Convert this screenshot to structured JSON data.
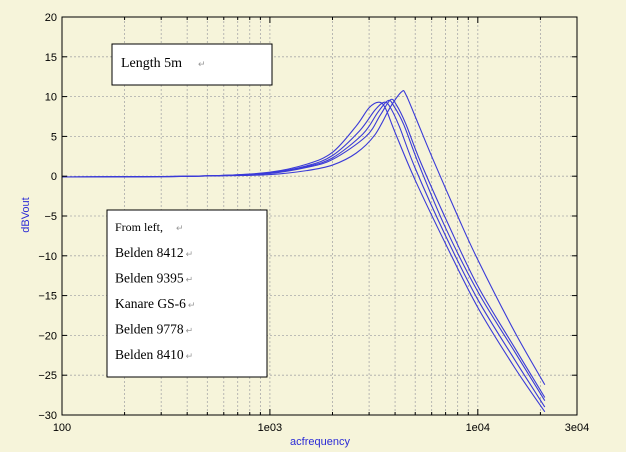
{
  "chart_data": {
    "type": "line",
    "xlabel": "acfrequency",
    "ylabel": "dBVout",
    "xscale": "log",
    "xlim": [
      100,
      30000
    ],
    "ylim": [
      -30,
      20
    ],
    "grid": true,
    "x_ticks": [
      {
        "value": 100,
        "label": "100"
      },
      {
        "value": 1000,
        "label": "1e03"
      },
      {
        "value": 10000,
        "label": "1e04"
      },
      {
        "value": 30000,
        "label": "3e04"
      }
    ],
    "y_ticks": [
      {
        "value": 20,
        "label": "20"
      },
      {
        "value": 15,
        "label": "15"
      },
      {
        "value": 10,
        "label": "10"
      },
      {
        "value": 5,
        "label": "5"
      },
      {
        "value": 0,
        "label": "0"
      },
      {
        "value": -5,
        "label": "−5"
      },
      {
        "value": -10,
        "label": "−10"
      },
      {
        "value": -15,
        "label": "−15"
      },
      {
        "value": -20,
        "label": "−20"
      },
      {
        "value": -25,
        "label": "−25"
      },
      {
        "value": -30,
        "label": "−30"
      }
    ],
    "line_color": "#3a3ad8",
    "series": [
      {
        "x": [
          100,
          300,
          600,
          1000,
          1500,
          2000,
          2600,
          3000,
          3350,
          3600,
          4000,
          5000,
          7000,
          10000,
          15000,
          21000
        ],
        "y": [
          -0.1,
          -0.05,
          0.1,
          0.5,
          1.5,
          3.0,
          6.3,
          8.6,
          9.3,
          8.5,
          5.5,
          -0.5,
          -8.5,
          -16.5,
          -24.0,
          -29.6
        ]
      },
      {
        "x": [
          100,
          300,
          600,
          1000,
          1500,
          2000,
          2700,
          3200,
          3550,
          3800,
          4200,
          5000,
          7000,
          10000,
          15000,
          21000
        ],
        "y": [
          -0.1,
          -0.05,
          0.1,
          0.45,
          1.3,
          2.6,
          5.7,
          8.3,
          9.3,
          8.6,
          6.2,
          1.0,
          -7.5,
          -15.5,
          -23.0,
          -29.0
        ]
      },
      {
        "x": [
          100,
          300,
          600,
          1000,
          1500,
          2000,
          2800,
          3300,
          3700,
          3950,
          4400,
          5200,
          7000,
          10000,
          15000,
          21000
        ],
        "y": [
          -0.1,
          -0.05,
          0.1,
          0.4,
          1.2,
          2.3,
          5.3,
          8.0,
          9.5,
          8.8,
          6.5,
          1.5,
          -6.5,
          -14.5,
          -22.0,
          -28.2
        ]
      },
      {
        "x": [
          100,
          300,
          600,
          1000,
          1500,
          2000,
          2900,
          3400,
          3800,
          4050,
          4500,
          5300,
          7200,
          10000,
          15000,
          21000
        ],
        "y": [
          -0.1,
          -0.05,
          0.1,
          0.35,
          1.1,
          2.1,
          5.0,
          7.7,
          9.6,
          9.0,
          6.6,
          1.8,
          -6.0,
          -13.8,
          -21.5,
          -27.8
        ]
      },
      {
        "x": [
          100,
          300,
          600,
          1000,
          1500,
          2000,
          2600,
          3200,
          3800,
          4300,
          4500,
          5000,
          6000,
          8000,
          10000,
          15000,
          21000
        ],
        "y": [
          -0.1,
          -0.05,
          0.05,
          0.2,
          0.7,
          1.4,
          2.9,
          5.2,
          8.7,
          10.6,
          10.3,
          7.5,
          2.5,
          -5.0,
          -10.5,
          -19.5,
          -26.2
        ]
      }
    ]
  },
  "note_length": {
    "text": "Length 5m"
  },
  "note_cables": {
    "header": "From left,",
    "items": [
      "Belden 8412",
      "Belden 9395",
      "Kanare GS-6",
      "Belden 9778",
      "Belden 8410"
    ]
  }
}
